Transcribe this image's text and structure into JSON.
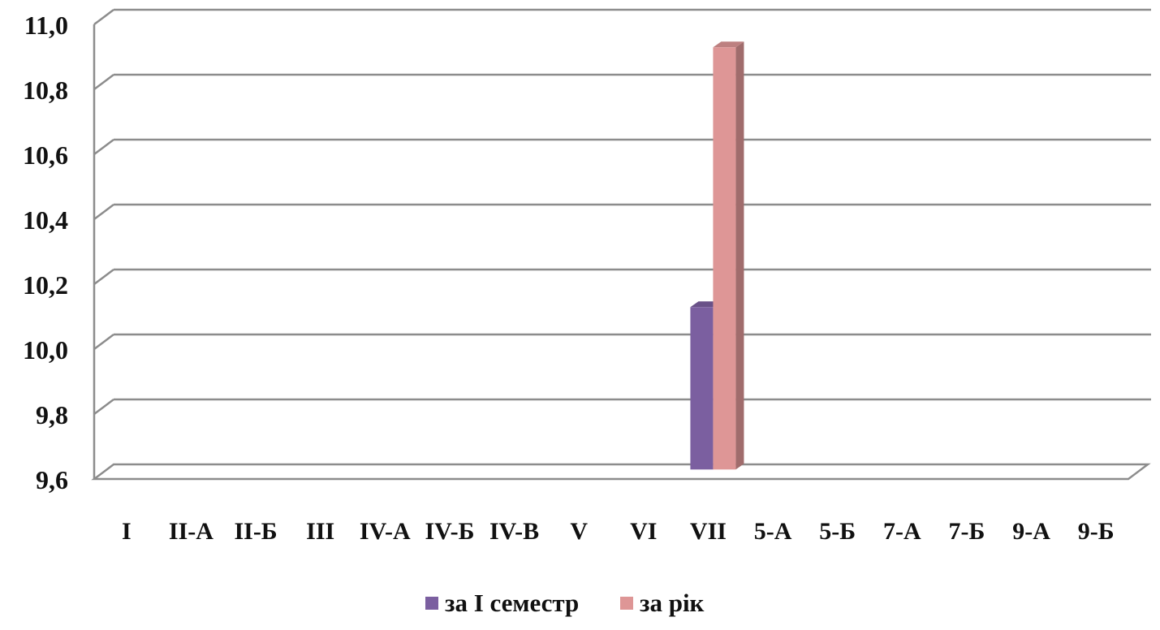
{
  "chart_data": {
    "type": "bar",
    "categories": [
      "I",
      "II-А",
      "II-Б",
      "III",
      "IV-А",
      "IV-Б",
      "IV-В",
      "V",
      "VI",
      "VII",
      "5-А",
      "5-Б",
      "7-А",
      "7-Б",
      "9-А",
      "9-Б"
    ],
    "series": [
      {
        "name": "за І семестр",
        "values": [
          null,
          null,
          null,
          null,
          null,
          null,
          null,
          null,
          null,
          10.1,
          null,
          null,
          null,
          null,
          null,
          null
        ],
        "color": "#7b5fa0"
      },
      {
        "name": "за рік",
        "values": [
          null,
          null,
          null,
          null,
          null,
          null,
          null,
          null,
          null,
          10.9,
          null,
          null,
          null,
          null,
          null,
          null
        ],
        "color": "#de9696"
      }
    ],
    "ylim": [
      9.6,
      11.0
    ],
    "yticks": [
      "9,6",
      "9,8",
      "10,0",
      "10,2",
      "10,4",
      "10,6",
      "10,8",
      "11,0"
    ],
    "ytick_values": [
      9.6,
      9.8,
      10.0,
      10.2,
      10.4,
      10.6,
      10.8,
      11.0
    ],
    "grid": true,
    "legend": "bottom",
    "colors": {
      "grid": "#8c8c8c",
      "wall": "#ffffff"
    }
  }
}
